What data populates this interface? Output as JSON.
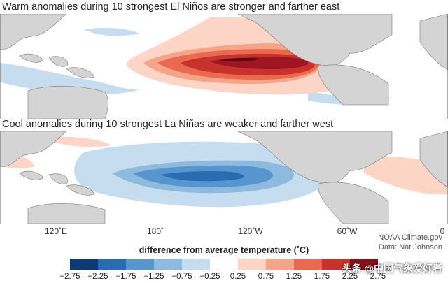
{
  "panels": [
    {
      "title": "Warm anomalies during 10 strongest El Niños are stronger and farther east"
    },
    {
      "title": "Cool anomalies during 10 strongest La Niñas are weaker and farther west"
    }
  ],
  "longitude_labels": [
    "120˚E",
    "180˚",
    "120˚W",
    "60˚W",
    "0"
  ],
  "credits": {
    "line1": "NOAA Climate.gov",
    "line2": "Data: Nat Johnson"
  },
  "legend": {
    "title": "difference from average temperature (˚C)",
    "colors": [
      "#0b3a74",
      "#2a6cb3",
      "#5795cf",
      "#8fbadf",
      "#c6ddf0",
      "#ffffff",
      "#fcd5c7",
      "#f6a489",
      "#ea6a50",
      "#c9312d",
      "#8c0d18"
    ],
    "ticks": [
      "−2.75",
      "−2.25",
      "−1.75",
      "−1.25",
      "−0.75",
      "−0.25",
      "0.25",
      "0.75",
      "1.25",
      "1.75",
      "2.25",
      "2.75"
    ]
  },
  "watermark": "头条 @中国气象爱好者"
}
